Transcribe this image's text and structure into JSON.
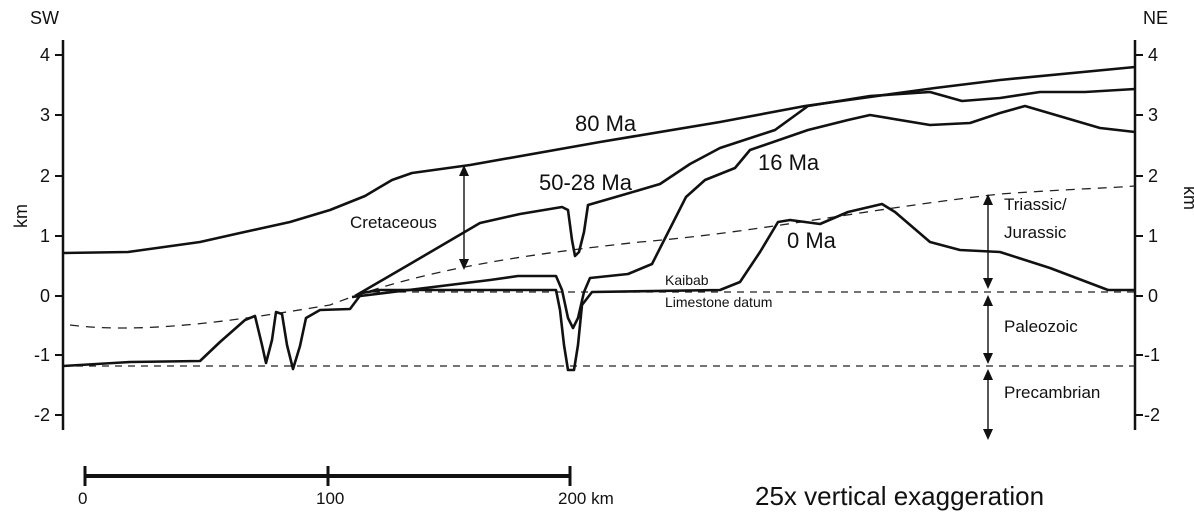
{
  "corner_labels": {
    "left": "SW",
    "right": "NE"
  },
  "axis": {
    "unit_label": "km",
    "ticks": [
      "4",
      "3",
      "2",
      "1",
      "0",
      "-1",
      "-2"
    ]
  },
  "profile_labels": {
    "age_80": "80 Ma",
    "age_50_28": "50-28 Ma",
    "age_16": "16 Ma",
    "age_0": "0 Ma"
  },
  "unit_labels": {
    "cretaceous": "Cretaceous",
    "triassic_line1": "Triassic/",
    "triassic_line2": "Jurassic",
    "paleozoic": "Paleozoic",
    "precambrian": "Precambrian",
    "kaibab_line1": "Kaibab",
    "kaibab_line2": "Limestone datum"
  },
  "scale_bar": {
    "label_0": "0",
    "label_100": "100",
    "label_200": "200 km"
  },
  "note": "25x vertical exaggeration",
  "colors": {
    "ink": "#111111",
    "background": "#ffffff"
  }
}
